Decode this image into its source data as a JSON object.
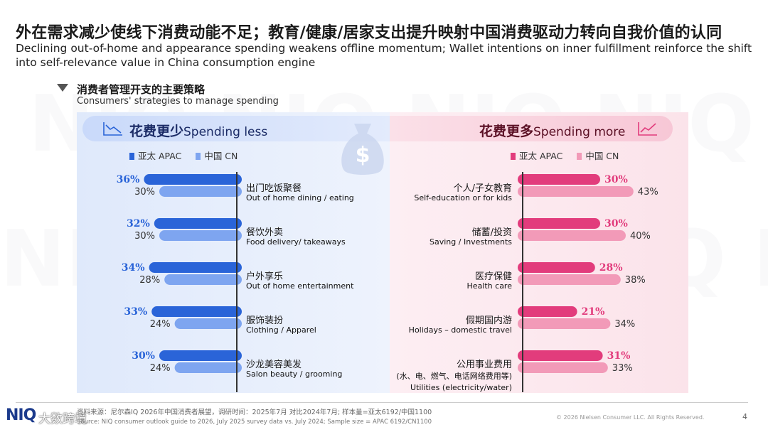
{
  "header": {
    "title_cn": "外在需求减少使线下消费动能不足；教育/健康/居家支出提升映射中国消费驱动力转向自我价值的认同",
    "title_en": "Declining out-of-home and appearance spending weakens offline momentum; Wallet intentions on inner fulfillment reinforce the shift into self-relevance value in China consumption engine"
  },
  "section": {
    "title_cn": "消费者管理开支的主要策略",
    "title_en": "Consumers' strategies to manage spending"
  },
  "colors": {
    "apac_blue": "#2a64d8",
    "cn_blue": "#7ea5f0",
    "apac_pink": "#e23c7c",
    "cn_pink": "#f29ab8"
  },
  "chart_data": [
    {
      "type": "bar",
      "orientation": "horizontal",
      "direction": "leftward",
      "title_cn": "花费更少",
      "title_en": "Spending less",
      "legend": [
        {
          "name": "亚太 APAC"
        },
        {
          "name": "中国 CN"
        }
      ],
      "categories": [
        {
          "cn": "出门吃饭聚餐",
          "en": "Out of home dining / eating"
        },
        {
          "cn": "餐饮外卖",
          "en": "Food delivery/ takeaways"
        },
        {
          "cn": "户外享乐",
          "en": "Out of home entertainment"
        },
        {
          "cn": "服饰装扮",
          "en": "Clothing / Apparel"
        },
        {
          "cn": "沙龙美容美发",
          "en": "Salon beauty / grooming"
        }
      ],
      "series": [
        {
          "name": "亚太 APAC",
          "values": [
            36,
            32,
            34,
            33,
            30
          ],
          "labels": [
            "36%",
            "32%",
            "34%",
            "33%",
            "30%"
          ]
        },
        {
          "name": "中国 CN",
          "values": [
            30,
            30,
            28,
            24,
            24
          ],
          "labels": [
            "30%",
            "30%",
            "28%",
            "24%",
            "24%"
          ]
        }
      ]
    },
    {
      "type": "bar",
      "orientation": "horizontal",
      "direction": "rightward",
      "title_cn": "花费更多",
      "title_en": "Spending more",
      "legend": [
        {
          "name": "亚太 APAC"
        },
        {
          "name": "中国 CN"
        }
      ],
      "categories": [
        {
          "cn": "个人/子女教育",
          "en": "Self-education or for kids"
        },
        {
          "cn": "储蓄/投资",
          "en": "Saving / Investments"
        },
        {
          "cn": "医疗保健",
          "en": "Health care"
        },
        {
          "cn": "假期国内游",
          "en": "Holidays – domestic travel"
        },
        {
          "cn": "公用事业费用",
          "en": "Utilities (electricity/water)",
          "note": "(水、电、燃气、电话网络费用等)"
        }
      ],
      "series": [
        {
          "name": "亚太 APAC",
          "values": [
            30,
            30,
            28,
            21,
            31
          ],
          "labels": [
            "30%",
            "30%",
            "28%",
            "21%",
            "31%"
          ]
        },
        {
          "name": "中国 CN",
          "values": [
            43,
            40,
            38,
            34,
            33
          ],
          "labels": [
            "43%",
            "40%",
            "38%",
            "34%",
            "33%"
          ]
        }
      ]
    }
  ],
  "footer": {
    "source_cn": "资料来源：尼尔森IQ 2026年中国消费者展望，调研时间：2025年7月 对比2024年7月; 样本量=亚太6192/中国1100",
    "source_en": "Source: NIQ consumer outlook guide to 2026, July 2025 survey data vs. July 2024;  Sample size = APAC 6192/CN1100",
    "copyright": "© 2026 Nielsen Consumer LLC. All Rights Reserved.",
    "page_number": "4",
    "logo": "NIQ",
    "watermark_label": "大数跨境"
  }
}
